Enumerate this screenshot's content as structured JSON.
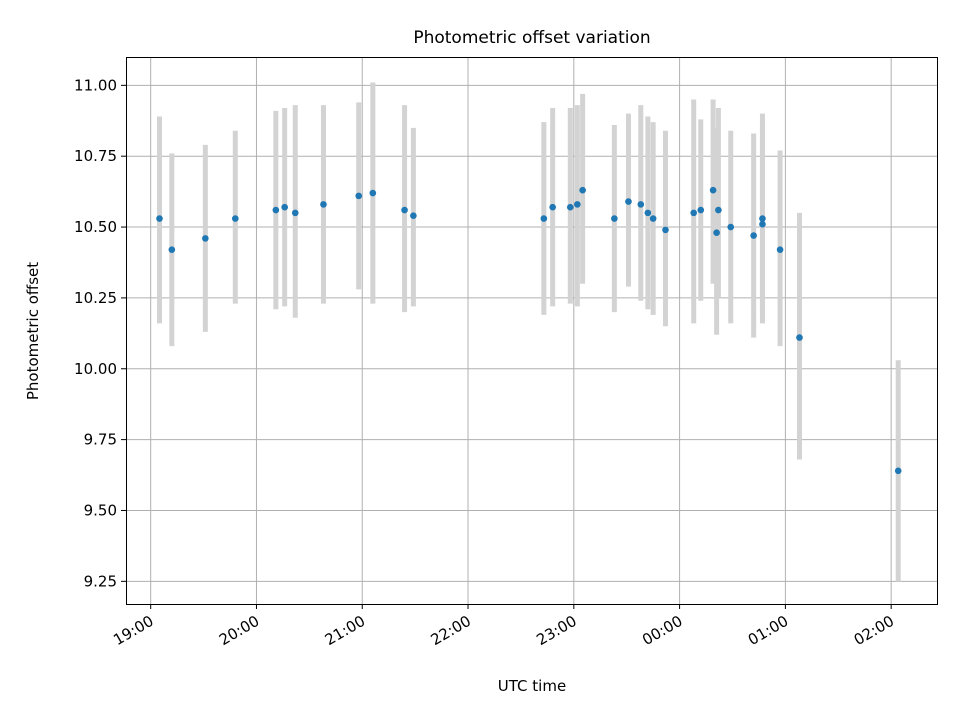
{
  "chart_data": {
    "type": "scatter",
    "title": "Photometric offset variation",
    "xlabel": "UTC time",
    "ylabel": "Photometric offset",
    "x_tick_labels": [
      "19:00",
      "20:00",
      "21:00",
      "22:00",
      "23:00",
      "00:00",
      "01:00",
      "02:00"
    ],
    "y_ticks": [
      9.25,
      9.5,
      9.75,
      10.0,
      10.25,
      10.5,
      10.75,
      11.0
    ],
    "y_tick_labels": [
      "9.25",
      "9.50",
      "9.75",
      "10.00",
      "10.25",
      "10.50",
      "10.75",
      "11.00"
    ],
    "xlim": [
      "18:46",
      "02:26"
    ],
    "ylim": [
      9.17,
      11.1
    ],
    "grid": true,
    "colors": {
      "marker": "#1f77b4",
      "errorbar": "#d3d3d3",
      "grid": "#b0b0b0"
    },
    "points": [
      {
        "x": "19:05",
        "y": 10.53,
        "ylo": 10.16,
        "yhi": 10.89
      },
      {
        "x": "19:12",
        "y": 10.42,
        "ylo": 10.08,
        "yhi": 10.76
      },
      {
        "x": "19:31",
        "y": 10.46,
        "ylo": 10.13,
        "yhi": 10.79
      },
      {
        "x": "19:48",
        "y": 10.53,
        "ylo": 10.23,
        "yhi": 10.84
      },
      {
        "x": "20:11",
        "y": 10.56,
        "ylo": 10.21,
        "yhi": 10.91
      },
      {
        "x": "20:16",
        "y": 10.57,
        "ylo": 10.22,
        "yhi": 10.92
      },
      {
        "x": "20:22",
        "y": 10.55,
        "ylo": 10.18,
        "yhi": 10.93
      },
      {
        "x": "20:38",
        "y": 10.58,
        "ylo": 10.23,
        "yhi": 10.93
      },
      {
        "x": "20:58",
        "y": 10.61,
        "ylo": 10.28,
        "yhi": 10.94
      },
      {
        "x": "21:06",
        "y": 10.62,
        "ylo": 10.23,
        "yhi": 11.01
      },
      {
        "x": "21:24",
        "y": 10.56,
        "ylo": 10.2,
        "yhi": 10.93
      },
      {
        "x": "21:29",
        "y": 10.54,
        "ylo": 10.22,
        "yhi": 10.85
      },
      {
        "x": "22:43",
        "y": 10.53,
        "ylo": 10.19,
        "yhi": 10.87
      },
      {
        "x": "22:48",
        "y": 10.57,
        "ylo": 10.22,
        "yhi": 10.92
      },
      {
        "x": "22:58",
        "y": 10.57,
        "ylo": 10.23,
        "yhi": 10.92
      },
      {
        "x": "23:02",
        "y": 10.58,
        "ylo": 10.22,
        "yhi": 10.93
      },
      {
        "x": "23:05",
        "y": 10.63,
        "ylo": 10.3,
        "yhi": 10.97
      },
      {
        "x": "23:23",
        "y": 10.53,
        "ylo": 10.2,
        "yhi": 10.86
      },
      {
        "x": "23:31",
        "y": 10.59,
        "ylo": 10.29,
        "yhi": 10.9
      },
      {
        "x": "23:38",
        "y": 10.58,
        "ylo": 10.24,
        "yhi": 10.93
      },
      {
        "x": "23:42",
        "y": 10.55,
        "ylo": 10.21,
        "yhi": 10.89
      },
      {
        "x": "23:45",
        "y": 10.53,
        "ylo": 10.19,
        "yhi": 10.87
      },
      {
        "x": "23:52",
        "y": 10.49,
        "ylo": 10.15,
        "yhi": 10.84
      },
      {
        "x": "00:08",
        "y": 10.55,
        "ylo": 10.16,
        "yhi": 10.95
      },
      {
        "x": "00:12",
        "y": 10.56,
        "ylo": 10.24,
        "yhi": 10.88
      },
      {
        "x": "00:19",
        "y": 10.63,
        "ylo": 10.3,
        "yhi": 10.95
      },
      {
        "x": "00:21",
        "y": 10.48,
        "ylo": 10.12,
        "yhi": 10.85
      },
      {
        "x": "00:22",
        "y": 10.56,
        "ylo": 10.25,
        "yhi": 10.92
      },
      {
        "x": "00:29",
        "y": 10.5,
        "ylo": 10.16,
        "yhi": 10.84
      },
      {
        "x": "00:42",
        "y": 10.47,
        "ylo": 10.11,
        "yhi": 10.83
      },
      {
        "x": "00:47",
        "y": 10.51,
        "ylo": 10.16,
        "yhi": 10.9
      },
      {
        "x": "00:47",
        "y": 10.53,
        "ylo": 10.2,
        "yhi": 10.86
      },
      {
        "x": "00:57",
        "y": 10.42,
        "ylo": 10.08,
        "yhi": 10.77
      },
      {
        "x": "01:08",
        "y": 10.11,
        "ylo": 9.68,
        "yhi": 10.55
      },
      {
        "x": "02:04",
        "y": 9.64,
        "ylo": 9.25,
        "yhi": 10.03
      }
    ]
  }
}
